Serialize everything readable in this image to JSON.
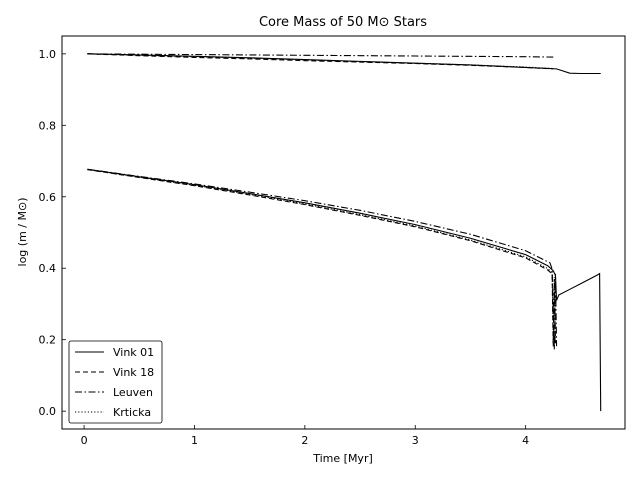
{
  "chart_data": {
    "type": "line",
    "title": "Core Mass of 50 M⊙ Stars",
    "xlabel": "Time [Myr]",
    "ylabel": "log (m / M⊙)",
    "xlim": [
      -0.2,
      4.9
    ],
    "ylim": [
      -0.05,
      1.05
    ],
    "xticks": [
      0,
      1,
      2,
      3,
      4
    ],
    "yticks": [
      0.0,
      0.2,
      0.4,
      0.6,
      0.8,
      1.0
    ],
    "xtick_labels": [
      "0",
      "1",
      "2",
      "3",
      "4"
    ],
    "ytick_labels": [
      "0.0",
      "0.2",
      "0.4",
      "0.6",
      "0.8",
      "1.0"
    ],
    "grid": false,
    "legend_position": "lower-left",
    "series": [
      {
        "name": "Vink 01",
        "style": "solid",
        "upper": {
          "x": [
            0.03,
            0.5,
            1.0,
            1.5,
            2.0,
            2.5,
            3.0,
            3.5,
            4.0,
            4.28,
            4.4,
            4.5,
            4.68
          ],
          "y": [
            1.0,
            0.997,
            0.993,
            0.989,
            0.984,
            0.979,
            0.974,
            0.969,
            0.962,
            0.958,
            0.946,
            0.945,
            0.945
          ]
        },
        "lower": {
          "x": [
            0.03,
            0.5,
            1.0,
            1.5,
            2.0,
            2.5,
            3.0,
            3.5,
            4.0,
            4.2,
            4.25,
            4.27,
            4.28,
            4.3,
            4.4,
            4.5,
            4.6,
            4.65,
            4.67,
            4.68
          ],
          "y": [
            0.677,
            0.656,
            0.634,
            0.609,
            0.583,
            0.554,
            0.522,
            0.484,
            0.438,
            0.407,
            0.393,
            0.38,
            0.31,
            0.325,
            0.341,
            0.357,
            0.373,
            0.381,
            0.385,
            0.0
          ]
        }
      },
      {
        "name": "Vink 18",
        "style": "dashed",
        "upper": {
          "x": [
            0.03,
            0.5,
            1.0,
            1.5,
            2.0,
            2.5,
            3.0,
            3.5,
            4.0,
            4.25
          ],
          "y": [
            1.0,
            0.995,
            0.99,
            0.986,
            0.981,
            0.977,
            0.973,
            0.968,
            0.962,
            0.958
          ]
        },
        "lower": {
          "x": [
            0.03,
            0.5,
            1.0,
            1.5,
            2.0,
            2.5,
            3.0,
            3.5,
            4.0,
            4.2,
            4.24,
            4.25,
            4.26,
            4.27
          ],
          "y": [
            0.676,
            0.654,
            0.631,
            0.605,
            0.578,
            0.548,
            0.516,
            0.477,
            0.429,
            0.395,
            0.384,
            0.18,
            0.37,
            0.19
          ]
        }
      },
      {
        "name": "Leuven",
        "style": "dashdot",
        "upper": {
          "x": [
            0.03,
            0.5,
            1.0,
            1.5,
            2.0,
            2.5,
            3.0,
            3.5,
            4.0,
            4.25
          ],
          "y": [
            1.0,
            0.999,
            0.998,
            0.997,
            0.996,
            0.995,
            0.994,
            0.993,
            0.992,
            0.991
          ]
        },
        "lower": {
          "x": [
            0.03,
            0.5,
            1.0,
            1.5,
            2.0,
            2.5,
            3.0,
            3.5,
            4.0,
            4.22,
            4.24,
            4.26,
            4.27,
            4.28
          ],
          "y": [
            0.677,
            0.657,
            0.636,
            0.613,
            0.589,
            0.562,
            0.531,
            0.495,
            0.449,
            0.415,
            0.398,
            0.173,
            0.384,
            0.182
          ]
        }
      },
      {
        "name": "Krticka",
        "style": "dotted",
        "upper": {
          "x": [
            0.03,
            0.5,
            1.0,
            1.5,
            2.0,
            2.5,
            3.0,
            3.5,
            4.0,
            4.25
          ],
          "y": [
            1.0,
            0.996,
            0.992,
            0.988,
            0.983,
            0.978,
            0.974,
            0.969,
            0.963,
            0.959
          ]
        },
        "lower": {
          "x": [
            0.03,
            0.5,
            1.0,
            1.5,
            2.0,
            2.5,
            3.0,
            3.5,
            4.0,
            4.2,
            4.24,
            4.25,
            4.26,
            4.27
          ],
          "y": [
            0.676,
            0.655,
            0.632,
            0.607,
            0.58,
            0.55,
            0.518,
            0.479,
            0.432,
            0.399,
            0.387,
            0.19,
            0.375,
            0.2
          ]
        }
      }
    ]
  }
}
